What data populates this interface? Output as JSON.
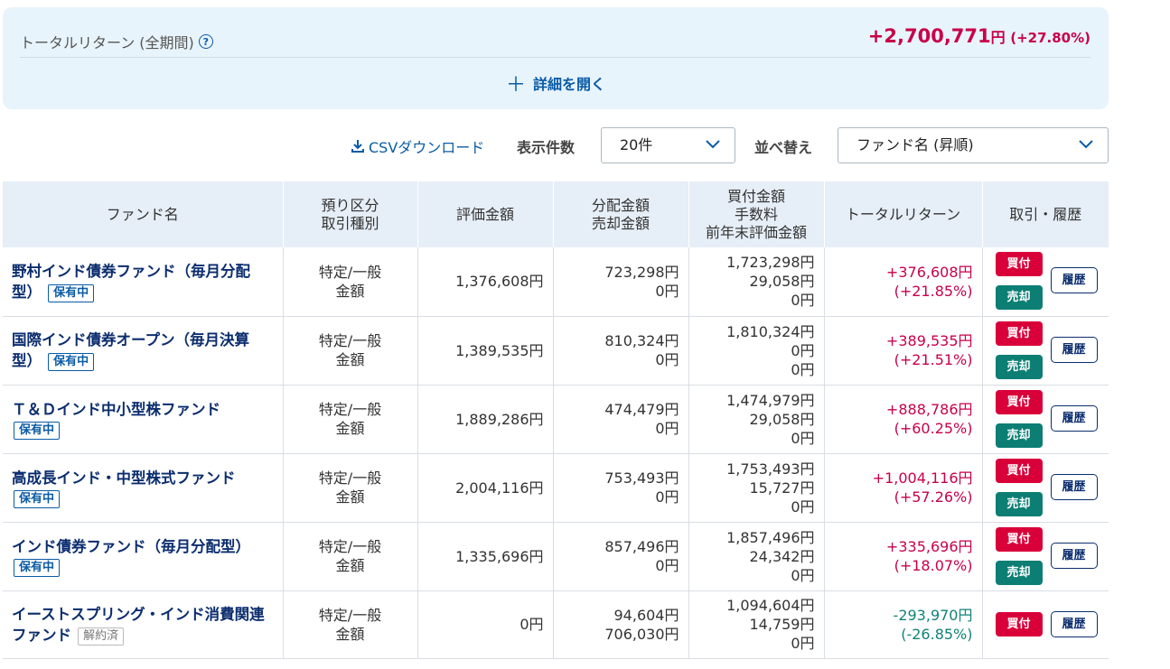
{
  "summary": {
    "label": "トータルリターン (全期間)",
    "help_icon": "?",
    "amount": "+2,700,771",
    "unit": "円",
    "percent": "(+27.80%)",
    "expand_icon": "＋",
    "expand_label": "詳細を開く"
  },
  "toolbar": {
    "csv_label": "CSVダウンロード",
    "count_label": "表示件数",
    "count_value": "20件",
    "sort_label": "並べ替え",
    "sort_value": "ファンド名 (昇順)"
  },
  "table": {
    "headers": {
      "fund": "ファンド名",
      "acct_1": "預り区分",
      "acct_2": "取引種別",
      "value": "評価金額",
      "dist_1": "分配金額",
      "dist_2": "売却金額",
      "buy_1": "買付金額",
      "buy_2": "手数料",
      "buy_3": "前年末評価金額",
      "ret": "トータルリターン",
      "action": "取引・履歴"
    },
    "rows": [
      {
        "name": "野村インド債券ファンド（毎月分配型）",
        "badge": "保有中",
        "acct1": "特定/一般",
        "acct2": "金額",
        "value": "1,376,608円",
        "dist": "723,298円",
        "sold": "0円",
        "buy": "1,723,298円",
        "fee": "29,058円",
        "prev": "0円",
        "ret": "+376,608円",
        "ret_pct": "(+21.85%)",
        "buy_btn": "買付",
        "sell_btn": "売却",
        "hist_btn": "履歴"
      },
      {
        "name": "国際インド債券オープン（毎月決算型）",
        "badge": "保有中",
        "acct1": "特定/一般",
        "acct2": "金額",
        "value": "1,389,535円",
        "dist": "810,324円",
        "sold": "0円",
        "buy": "1,810,324円",
        "fee": "0円",
        "prev": "0円",
        "ret": "+389,535円",
        "ret_pct": "(+21.51%)",
        "buy_btn": "買付",
        "sell_btn": "売却",
        "hist_btn": "履歴"
      },
      {
        "name": "Ｔ＆Ｄインド中小型株ファンド",
        "badge": "保有中",
        "acct1": "特定/一般",
        "acct2": "金額",
        "value": "1,889,286円",
        "dist": "474,479円",
        "sold": "0円",
        "buy": "1,474,979円",
        "fee": "29,058円",
        "prev": "0円",
        "ret": "+888,786円",
        "ret_pct": "(+60.25%)",
        "buy_btn": "買付",
        "sell_btn": "売却",
        "hist_btn": "履歴"
      },
      {
        "name": "高成長インド・中型株式ファンド",
        "badge": "保有中",
        "acct1": "特定/一般",
        "acct2": "金額",
        "value": "2,004,116円",
        "dist": "753,493円",
        "sold": "0円",
        "buy": "1,753,493円",
        "fee": "15,727円",
        "prev": "0円",
        "ret": "+1,004,116円",
        "ret_pct": "(+57.26%)",
        "buy_btn": "買付",
        "sell_btn": "売却",
        "hist_btn": "履歴"
      },
      {
        "name": "インド債券ファンド（毎月分配型）",
        "badge": "保有中",
        "acct1": "特定/一般",
        "acct2": "金額",
        "value": "1,335,696円",
        "dist": "857,496円",
        "sold": "0円",
        "buy": "1,857,496円",
        "fee": "24,342円",
        "prev": "0円",
        "ret": "+335,696円",
        "ret_pct": "(+18.07%)",
        "buy_btn": "買付",
        "sell_btn": "売却",
        "hist_btn": "履歴"
      },
      {
        "name": "イーストスプリング・インド消費関連ファンド",
        "badge": "解約済",
        "acct1": "特定/一般",
        "acct2": "金額",
        "value": "0円",
        "dist": "94,604円",
        "sold": "706,030円",
        "buy": "1,094,604円",
        "fee": "14,759円",
        "prev": "0円",
        "ret": "-293,970円",
        "ret_pct": "(-26.85%)",
        "buy_btn": "買付",
        "hist_btn": "履歴"
      }
    ]
  }
}
